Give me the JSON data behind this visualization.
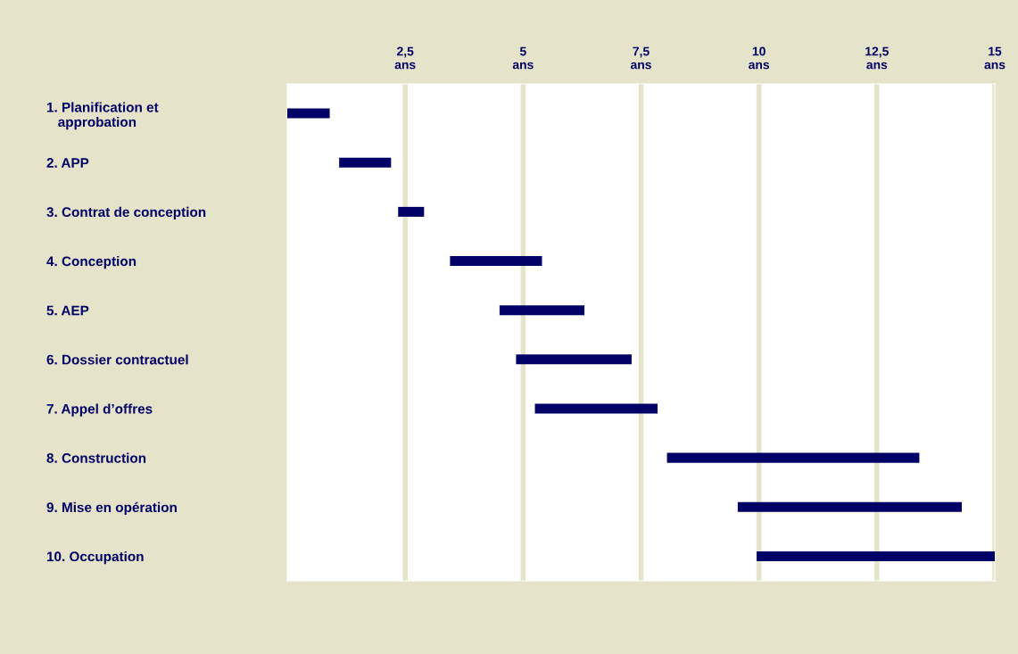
{
  "chart_data": {
    "type": "bar",
    "orientation": "horizontal",
    "categories": [
      "1. Planification et\n   approbation",
      "2. APP",
      "3. Contrat de conception",
      "4. Conception",
      "5. AEP",
      "6. Dossier contractuel",
      "7. Appel d’offres",
      "8. Construction",
      "9. Mise en opération",
      "10. Occupation"
    ],
    "base": [
      0,
      1.1,
      2.35,
      3.45,
      4.5,
      4.85,
      5.25,
      8.05,
      9.55,
      9.95
    ],
    "values": [
      0.9,
      1.1,
      0.55,
      1.95,
      1.8,
      2.45,
      2.6,
      5.35,
      4.75,
      5.05
    ],
    "color": "#000066",
    "xlim": [
      0,
      15
    ],
    "xticks": [
      {
        "value": 2.5,
        "label": "2,5\nans"
      },
      {
        "value": 5,
        "label": "5\nans"
      },
      {
        "value": 7.5,
        "label": "7,5\nans"
      },
      {
        "value": 10,
        "label": "10\nans"
      },
      {
        "value": 12.5,
        "label": "12,5\nans"
      },
      {
        "value": 15,
        "label": "15\nans"
      }
    ],
    "grid": "x"
  }
}
